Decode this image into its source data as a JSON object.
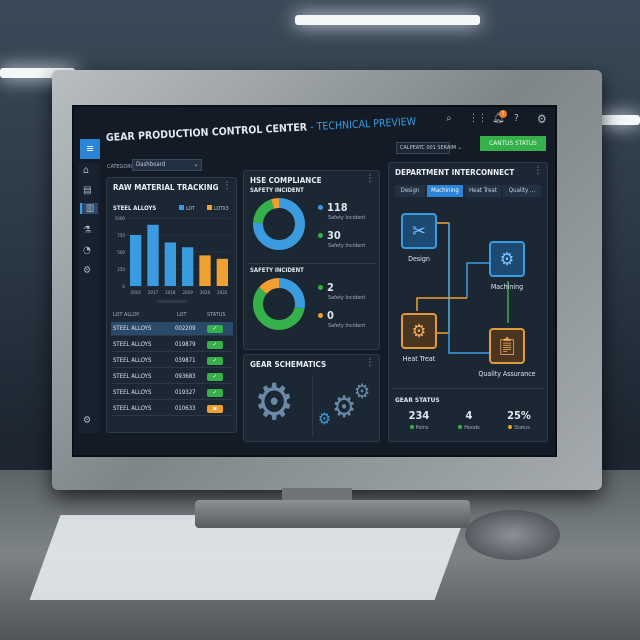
{
  "header": {
    "title": "GEAR PRODUCTION CONTROL CENTER",
    "subtitle": "- TECHNICAL PREVIEW",
    "dropdown": "CALPEATC 001 SERAIM",
    "status_button": "CANTUS STATUS",
    "notification_count": "1"
  },
  "category": {
    "label": "CATEGORY",
    "value": "Dashboard"
  },
  "sidebar": {
    "icons": [
      "menu-icon",
      "home-icon",
      "document-icon",
      "chart-icon",
      "flask-icon",
      "gauge-icon",
      "gear-icon"
    ],
    "active": "chart-icon"
  },
  "raw": {
    "title": "RAW MATERIAL TRACKING",
    "chart_title": "STEEL ALLOYS",
    "table_headers": [
      "LOT ALLOY",
      "LOT",
      "STATUS"
    ],
    "rows": [
      {
        "alloy": "STEEL ALLOYS",
        "lot": "002209",
        "status": "ok"
      },
      {
        "alloy": "STEEL ALLOYS",
        "lot": "019879",
        "status": "ok"
      },
      {
        "alloy": "STEEL ALLOYS",
        "lot": "039871",
        "status": "ok"
      },
      {
        "alloy": "STEEL ALLOYS",
        "lot": "093683",
        "status": "ok"
      },
      {
        "alloy": "STEEL ALLOYS",
        "lot": "019327",
        "status": "ok"
      },
      {
        "alloy": "STEEL ALLOYS",
        "lot": "010633",
        "status": "warn"
      }
    ]
  },
  "chart_data": {
    "type": "bar",
    "title": "STEEL ALLOYS",
    "categories": [
      "2016",
      "2017",
      "2018",
      "2019",
      "2020",
      "2022"
    ],
    "values": [
      750,
      900,
      640,
      570,
      450,
      400
    ],
    "series_colors": [
      "#3a9be0",
      "#3a9be0",
      "#3a9be0",
      "#3a9be0",
      "#f0a030",
      "#f0a030"
    ],
    "legend": [
      {
        "name": "LOT",
        "color": "#3a9be0"
      },
      {
        "name": "LOTX3",
        "color": "#f0a030"
      }
    ],
    "yticks": [
      0,
      250,
      500,
      750,
      1000
    ],
    "ylim": [
      0,
      1000
    ],
    "legend_position": "top-right"
  },
  "hse": {
    "title": "HSE COMPLIANCE",
    "charts": [
      {
        "title": "SAFETY INCIDENT",
        "slices": [
          {
            "value": 118,
            "color": "#3a9be0"
          },
          {
            "value": 30,
            "color": "#35b04a"
          },
          {
            "value": 8,
            "color": "#f0a030"
          }
        ],
        "stats": [
          {
            "value": "118",
            "label": "Safety Incident",
            "color": "#3a9be0"
          },
          {
            "value": "30",
            "label": "Safety Incident",
            "color": "#35b04a"
          }
        ]
      },
      {
        "title": "SAFETY INCIDENT",
        "slices": [
          {
            "value": 28,
            "color": "#3a9be0"
          },
          {
            "value": 58,
            "color": "#35b04a"
          },
          {
            "value": 14,
            "color": "#f0a030"
          }
        ],
        "stats": [
          {
            "value": "2",
            "label": "Safety Incident",
            "color": "#35b04a"
          },
          {
            "value": "0",
            "label": "Safety Incident",
            "color": "#f0a030"
          }
        ]
      }
    ]
  },
  "schematics": {
    "title": "GEAR SCHEMATICS"
  },
  "dept": {
    "title": "DEPARTMENT INTERCONNECT",
    "tabs": [
      "Design",
      "Machining",
      "Heat Treat",
      "Quality ..."
    ],
    "active_tab": 1,
    "nodes": [
      "Design",
      "Machining",
      "Heat Treat",
      "Quality Assurance"
    ],
    "status_title": "GEAR STATUS",
    "stats": [
      {
        "value": "234",
        "label": "Poins",
        "color": "#35b04a"
      },
      {
        "value": "4",
        "label": "Hoods",
        "color": "#35b04a"
      },
      {
        "value": "25%",
        "label": "Status",
        "color": "#f0a030"
      }
    ]
  }
}
